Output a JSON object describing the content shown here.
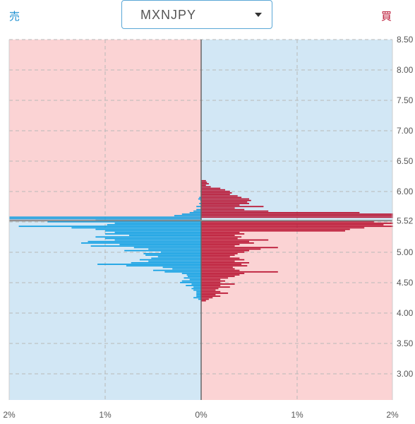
{
  "header": {
    "sell_label": "売",
    "buy_label": "買",
    "pair": "MXNJPY"
  },
  "colors": {
    "sell": "#0f9fe3",
    "buy": "#b8102f",
    "bg_pink": "#fbd3d4",
    "bg_blue": "#d2e7f5",
    "current_price_line": "#888888"
  },
  "chart_data": {
    "type": "bar",
    "orientation": "horizontal-diverging",
    "current_price": 5.52,
    "price_step": 0.025,
    "xlim_percent": [
      -2,
      2
    ],
    "ylim": [
      2.57,
      8.5
    ],
    "grid": true,
    "y_tick_labels": [
      "8.50",
      "8.00",
      "7.50",
      "7.00",
      "6.50",
      "6.00",
      "5.52",
      "5.00",
      "4.50",
      "4.00",
      "3.50",
      "3.00"
    ],
    "x_tick_labels": [
      "2%",
      "1%",
      "0%",
      "1%",
      "2%"
    ],
    "series": [
      {
        "side": "sell",
        "points": [
          [
            5.9,
            0.02
          ],
          [
            5.875,
            0.03
          ],
          [
            5.85,
            0.01
          ],
          [
            5.8,
            0.02
          ],
          [
            5.75,
            0.05
          ],
          [
            5.7,
            0.05
          ],
          [
            5.675,
            0.08
          ],
          [
            5.65,
            0.12
          ],
          [
            5.625,
            0.2
          ],
          [
            5.6,
            0.28
          ],
          [
            5.575,
            2.0
          ],
          [
            5.55,
            2.0
          ],
          [
            5.525,
            1.1
          ],
          [
            5.5,
            1.6
          ],
          [
            5.475,
            0.9
          ],
          [
            5.45,
            0.98
          ],
          [
            5.425,
            1.9
          ],
          [
            5.4,
            1.35
          ],
          [
            5.375,
            1.1
          ],
          [
            5.35,
            1.0
          ],
          [
            5.325,
            0.9
          ],
          [
            5.3,
            1.0
          ],
          [
            5.275,
            0.75
          ],
          [
            5.25,
            1.1
          ],
          [
            5.225,
            1.0
          ],
          [
            5.2,
            0.9
          ],
          [
            5.175,
            1.18
          ],
          [
            5.15,
            1.25
          ],
          [
            5.125,
            0.85
          ],
          [
            5.1,
            1.15
          ],
          [
            5.075,
            0.7
          ],
          [
            5.05,
            0.55
          ],
          [
            5.025,
            0.8
          ],
          [
            5.0,
            0.42
          ],
          [
            4.975,
            0.6
          ],
          [
            4.95,
            0.58
          ],
          [
            4.925,
            0.45
          ],
          [
            4.9,
            0.52
          ],
          [
            4.875,
            0.64
          ],
          [
            4.85,
            0.55
          ],
          [
            4.825,
            0.73
          ],
          [
            4.8,
            1.08
          ],
          [
            4.775,
            0.78
          ],
          [
            4.75,
            0.4
          ],
          [
            4.725,
            0.3
          ],
          [
            4.7,
            0.5
          ],
          [
            4.675,
            0.38
          ],
          [
            4.65,
            0.2
          ],
          [
            4.625,
            0.15
          ],
          [
            4.6,
            0.14
          ],
          [
            4.575,
            0.18
          ],
          [
            4.55,
            0.12
          ],
          [
            4.525,
            0.2
          ],
          [
            4.5,
            0.22
          ],
          [
            4.475,
            0.1
          ],
          [
            4.45,
            0.16
          ],
          [
            4.425,
            0.08
          ],
          [
            4.4,
            0.1
          ],
          [
            4.375,
            0.08
          ],
          [
            4.35,
            0.05
          ],
          [
            4.325,
            0.05
          ],
          [
            4.3,
            0.05
          ],
          [
            4.275,
            0.05
          ],
          [
            4.25,
            0.08
          ],
          [
            4.225,
            0.03
          ]
        ]
      },
      {
        "side": "buy",
        "points": [
          [
            6.175,
            0.05
          ],
          [
            6.15,
            0.06
          ],
          [
            6.125,
            0.08
          ],
          [
            6.1,
            0.05
          ],
          [
            6.075,
            0.1
          ],
          [
            6.05,
            0.2
          ],
          [
            6.025,
            0.25
          ],
          [
            6.0,
            0.3
          ],
          [
            5.975,
            0.32
          ],
          [
            5.95,
            0.3
          ],
          [
            5.925,
            0.38
          ],
          [
            5.9,
            0.42
          ],
          [
            5.875,
            0.5
          ],
          [
            5.85,
            0.52
          ],
          [
            5.825,
            0.48
          ],
          [
            5.8,
            0.5
          ],
          [
            5.775,
            0.4
          ],
          [
            5.75,
            0.65
          ],
          [
            5.725,
            0.35
          ],
          [
            5.7,
            0.45
          ],
          [
            5.675,
            0.7
          ],
          [
            5.65,
            1.65
          ],
          [
            5.625,
            2.0
          ],
          [
            5.6,
            2.0
          ],
          [
            5.575,
            2.0
          ],
          [
            5.5,
            1.8
          ],
          [
            5.475,
            2.0
          ],
          [
            5.45,
            1.9
          ],
          [
            5.425,
            2.0
          ],
          [
            5.4,
            1.7
          ],
          [
            5.375,
            1.55
          ],
          [
            5.35,
            1.5
          ],
          [
            5.325,
            0.4
          ],
          [
            5.3,
            0.45
          ],
          [
            5.275,
            0.35
          ],
          [
            5.25,
            0.42
          ],
          [
            5.225,
            0.38
          ],
          [
            5.2,
            0.7
          ],
          [
            5.175,
            0.5
          ],
          [
            5.15,
            0.55
          ],
          [
            5.125,
            0.4
          ],
          [
            5.1,
            0.35
          ],
          [
            5.075,
            0.8
          ],
          [
            5.05,
            0.62
          ],
          [
            5.025,
            0.5
          ],
          [
            5.0,
            0.45
          ],
          [
            4.975,
            0.38
          ],
          [
            4.95,
            0.35
          ],
          [
            4.925,
            0.3
          ],
          [
            4.9,
            0.4
          ],
          [
            4.875,
            0.45
          ],
          [
            4.85,
            0.35
          ],
          [
            4.825,
            0.5
          ],
          [
            4.8,
            0.42
          ],
          [
            4.775,
            0.48
          ],
          [
            4.75,
            0.33
          ],
          [
            4.725,
            0.35
          ],
          [
            4.7,
            0.4
          ],
          [
            4.675,
            0.8
          ],
          [
            4.65,
            0.45
          ],
          [
            4.625,
            0.4
          ],
          [
            4.6,
            0.35
          ],
          [
            4.575,
            0.28
          ],
          [
            4.55,
            0.2
          ],
          [
            4.525,
            0.25
          ],
          [
            4.5,
            0.2
          ],
          [
            4.475,
            0.35
          ],
          [
            4.45,
            0.2
          ],
          [
            4.425,
            0.3
          ],
          [
            4.4,
            0.18
          ],
          [
            4.375,
            0.15
          ],
          [
            4.35,
            0.2
          ],
          [
            4.325,
            0.28
          ],
          [
            4.3,
            0.15
          ],
          [
            4.275,
            0.2
          ],
          [
            4.25,
            0.12
          ],
          [
            4.225,
            0.08
          ],
          [
            4.2,
            0.05
          ]
        ]
      }
    ]
  }
}
